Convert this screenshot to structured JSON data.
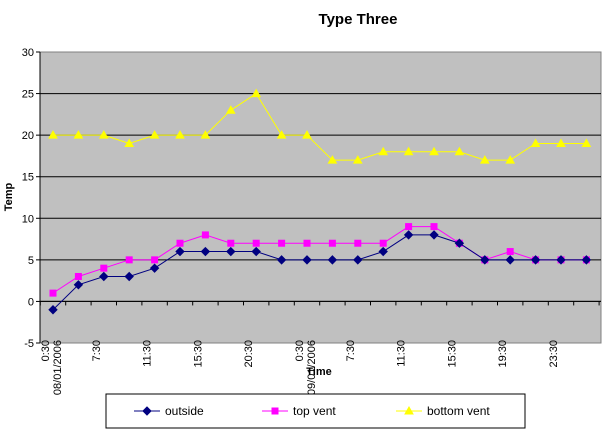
{
  "chart_data": {
    "type": "line",
    "title": "Type Three",
    "xlabel": "Time",
    "ylabel": "Temp",
    "ylim": [
      -5,
      30
    ],
    "yticks": [
      -5,
      0,
      5,
      10,
      15,
      20,
      25,
      30
    ],
    "grid": "horizontal",
    "plot_background": "#c0c0c0",
    "legend_position": "bottom",
    "x_tick_labels": [
      {
        "index": 0,
        "lines": [
          "0:30",
          "08/01/2006"
        ]
      },
      {
        "index": 2,
        "lines": [
          "7:30"
        ]
      },
      {
        "index": 4,
        "lines": [
          "11:30"
        ]
      },
      {
        "index": 6,
        "lines": [
          "15:30"
        ]
      },
      {
        "index": 8,
        "lines": [
          "20:30"
        ]
      },
      {
        "index": 10,
        "lines": [
          "0:30",
          "09/01/2006"
        ]
      },
      {
        "index": 12,
        "lines": [
          "7:30"
        ]
      },
      {
        "index": 14,
        "lines": [
          "11:30"
        ]
      },
      {
        "index": 16,
        "lines": [
          "15:30"
        ]
      },
      {
        "index": 18,
        "lines": [
          "19:30"
        ]
      },
      {
        "index": 20,
        "lines": [
          "23:30"
        ]
      }
    ],
    "series": [
      {
        "name": "outside",
        "color": "#000080",
        "marker": "diamond",
        "values": [
          -1,
          2,
          3,
          3,
          4,
          6,
          6,
          6,
          6,
          5,
          5,
          5,
          5,
          6,
          8,
          8,
          7,
          5,
          5,
          5,
          5,
          5
        ]
      },
      {
        "name": "top vent",
        "color": "#ff00ff",
        "marker": "square",
        "values": [
          1,
          3,
          4,
          5,
          5,
          7,
          8,
          7,
          7,
          7,
          7,
          7,
          7,
          7,
          9,
          9,
          7,
          5,
          6,
          5,
          5,
          5
        ]
      },
      {
        "name": "bottom vent",
        "color": "#ffff00",
        "marker": "triangle",
        "values": [
          20,
          20,
          20,
          19,
          20,
          20,
          20,
          23,
          25,
          20,
          20,
          17,
          17,
          18,
          18,
          18,
          18,
          17,
          17,
          19,
          19,
          19
        ]
      }
    ]
  }
}
